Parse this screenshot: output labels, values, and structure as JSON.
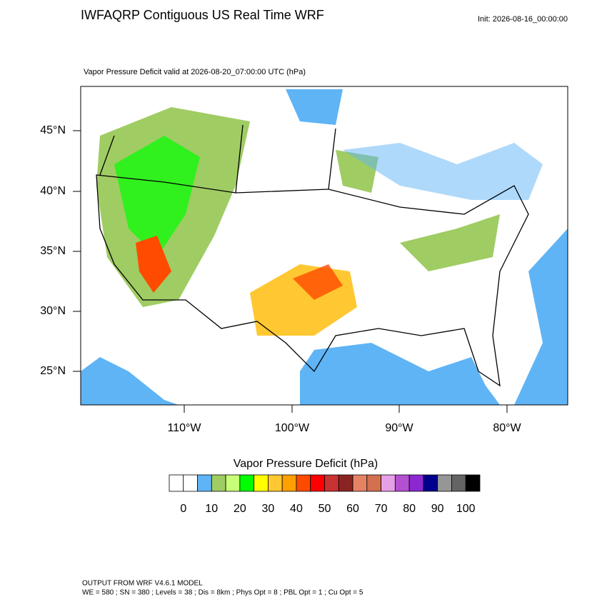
{
  "header": {
    "title": "IWFAQRP Contiguous US Real Time WRF",
    "init": "Init: 2026-08-16_00:00:00",
    "subtitle": "Vapor Pressure Deficit valid at 2026-08-20_07:00:00 UTC   (hPa)"
  },
  "map": {
    "lat_labels": [
      "45°N",
      "40°N",
      "35°N",
      "30°N",
      "25°N"
    ],
    "lon_labels": [
      "110°W",
      "100°W",
      "90°W",
      "80°W"
    ]
  },
  "colorbar": {
    "title": "Vapor Pressure Deficit  (hPa)",
    "labels": [
      0,
      10,
      20,
      30,
      40,
      50,
      60,
      70,
      80,
      90,
      100
    ],
    "colors": [
      "#ffffff",
      "#ffffff",
      "#5fb4f5",
      "#a0cc64",
      "#c8ff78",
      "#00ff00",
      "#ffff00",
      "#ffc832",
      "#ffa000",
      "#ff4b00",
      "#ff0000",
      "#c83232",
      "#8b2323",
      "#e68264",
      "#d27050",
      "#e6a0e6",
      "#b450d2",
      "#8c28d2",
      "#00008c",
      "#969696",
      "#646464",
      "#000000"
    ]
  },
  "footer": {
    "line1": "OUTPUT FROM WRF V4.6.1 MODEL",
    "line2": "WE = 580 ; SN = 380 ; Levels = 38 ; Dis = 8km ; Phys Opt = 8 ; PBL Opt = 1 ; Cu Opt = 5"
  }
}
